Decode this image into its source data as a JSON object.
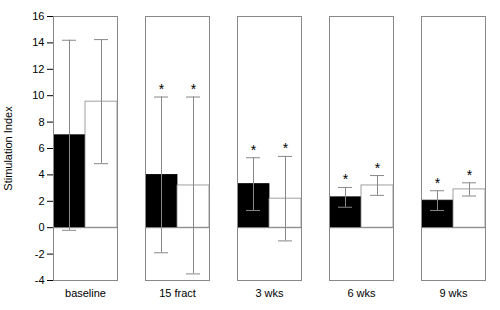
{
  "chart_data": {
    "type": "bar",
    "ylabel": "Stimulation Index",
    "categories": [
      "baseline",
      "15 fract",
      "3 wks",
      "6 wks",
      "9 wks"
    ],
    "series": [
      {
        "color": "#000000",
        "edge_color": "#000000",
        "values": [
          7.0,
          4.0,
          3.3,
          2.3,
          2.05
        ],
        "errors": [
          7.2,
          5.9,
          2.0,
          0.75,
          0.75
        ]
      },
      {
        "color": "#ffffff",
        "edge_color": "#888888",
        "values": [
          9.55,
          3.2,
          2.2,
          3.2,
          2.9
        ],
        "errors": [
          4.7,
          6.7,
          3.2,
          0.75,
          0.5
        ]
      }
    ],
    "ylim": [
      -4,
      16
    ],
    "yticks": [
      -4,
      -2,
      0,
      2,
      4,
      6,
      8,
      10,
      12,
      14,
      16
    ],
    "grid": false,
    "significance": [
      false,
      true,
      true,
      true,
      true
    ],
    "significance_label": "*"
  }
}
